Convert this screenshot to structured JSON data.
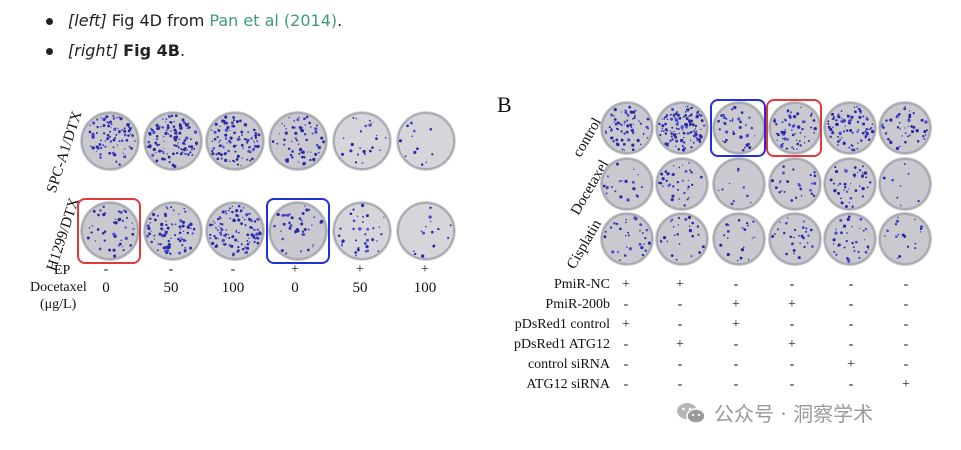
{
  "bullets": [
    {
      "tag": "[left]",
      "text_before": " Fig 4D from ",
      "link": "Pan et al (2014)",
      "text_after": "."
    },
    {
      "tag": "[right]",
      "text_before": " ",
      "bold": "Fig 4B",
      "text_after": "."
    }
  ],
  "left_figure": {
    "row_labels": [
      "SPC-A1/DTX",
      "H1299/DTX"
    ],
    "treatment_labels": [
      "EP",
      "Docetaxel",
      "(μg/L)"
    ],
    "ep": [
      "-",
      "-",
      "-",
      "+",
      "+",
      "+"
    ],
    "docetaxel": [
      "0",
      "50",
      "100",
      "0",
      "50",
      "100"
    ],
    "highlight_colors": {
      "red": "#e03a3a",
      "blue": "#2230d8"
    }
  },
  "right_figure": {
    "panel_letter": "B",
    "row_labels": [
      "control",
      "Docetaxel",
      "Cisplatin"
    ],
    "rows": [
      {
        "label": "PmiR-NC",
        "values": [
          "+",
          "+",
          "-",
          "-",
          "-",
          "-"
        ]
      },
      {
        "label": "PmiR-200b",
        "values": [
          "-",
          "-",
          "+",
          "+",
          "-",
          "-"
        ]
      },
      {
        "label": "pDsRed1 control",
        "values": [
          "+",
          "-",
          "+",
          "-",
          "-",
          "-"
        ]
      },
      {
        "label": "pDsRed1 ATG12",
        "values": [
          "-",
          "+",
          "-",
          "+",
          "-",
          "-"
        ]
      },
      {
        "label": "control siRNA",
        "values": [
          "-",
          "-",
          "-",
          "-",
          "+",
          "-"
        ]
      },
      {
        "label": "ATG12 siRNA",
        "values": [
          "-",
          "-",
          "-",
          "-",
          "-",
          "+"
        ]
      }
    ]
  },
  "watermark": {
    "text": "公众号 · 洞察学术"
  }
}
